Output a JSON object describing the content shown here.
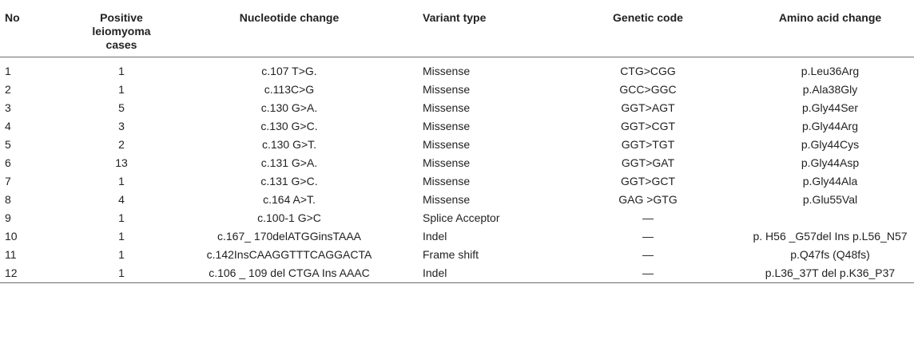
{
  "headers": {
    "no": "No",
    "positive_cases": "Positive leiomyoma cases",
    "nucleotide_change": "Nucleotide change",
    "variant_type": "Variant type",
    "genetic_code": "Genetic code",
    "amino_acid_change": "Amino acid change"
  },
  "rows": [
    {
      "no": "1",
      "cases": "1",
      "nucleotide": "c.107 T>G.",
      "variant": "Missense",
      "code": "CTG>CGG",
      "amino": "p.Leu36Arg"
    },
    {
      "no": "2",
      "cases": "1",
      "nucleotide": "c.113C>G",
      "variant": "Missense",
      "code": "GCC>GGC",
      "amino": "p.Ala38Gly"
    },
    {
      "no": "3",
      "cases": "5",
      "nucleotide": "c.130 G>A.",
      "variant": "Missense",
      "code": "GGT>AGT",
      "amino": "p.Gly44Ser"
    },
    {
      "no": "4",
      "cases": "3",
      "nucleotide": "c.130 G>C.",
      "variant": "Missense",
      "code": "GGT>CGT",
      "amino": "p.Gly44Arg"
    },
    {
      "no": "5",
      "cases": "2",
      "nucleotide": "c.130 G>T.",
      "variant": "Missense",
      "code": "GGT>TGT",
      "amino": "p.Gly44Cys"
    },
    {
      "no": "6",
      "cases": "13",
      "nucleotide": "c.131 G>A.",
      "variant": "Missense",
      "code": "GGT>GAT",
      "amino": "p.Gly44Asp"
    },
    {
      "no": "7",
      "cases": "1",
      "nucleotide": "c.131 G>C.",
      "variant": "Missense",
      "code": "GGT>GCT",
      "amino": "p.Gly44Ala"
    },
    {
      "no": "8",
      "cases": "4",
      "nucleotide": "c.164 A>T.",
      "variant": "Missense",
      "code": "GAG >GTG",
      "amino": "p.Glu55Val"
    },
    {
      "no": "9",
      "cases": "1",
      "nucleotide": "c.100-1 G>C",
      "variant": "Splice Acceptor",
      "code": "—",
      "amino": ""
    },
    {
      "no": "10",
      "cases": "1",
      "nucleotide": "c.167_ 170delATGGinsTAAA",
      "variant": "Indel",
      "code": "—",
      "amino": "p. H56 _G57del Ins p.L56_N57"
    },
    {
      "no": "11",
      "cases": "1",
      "nucleotide": "c.142InsCAAGGTTTCAGGACTA",
      "variant": "Frame shift",
      "code": "—",
      "amino": "p.Q47fs (Q48fs)"
    },
    {
      "no": "12",
      "cases": "1",
      "nucleotide": "c.106 _ 109 del CTGA Ins AAAC",
      "variant": "Indel",
      "code": "—",
      "amino": "p.L36_37T del p.K36_P37"
    }
  ]
}
